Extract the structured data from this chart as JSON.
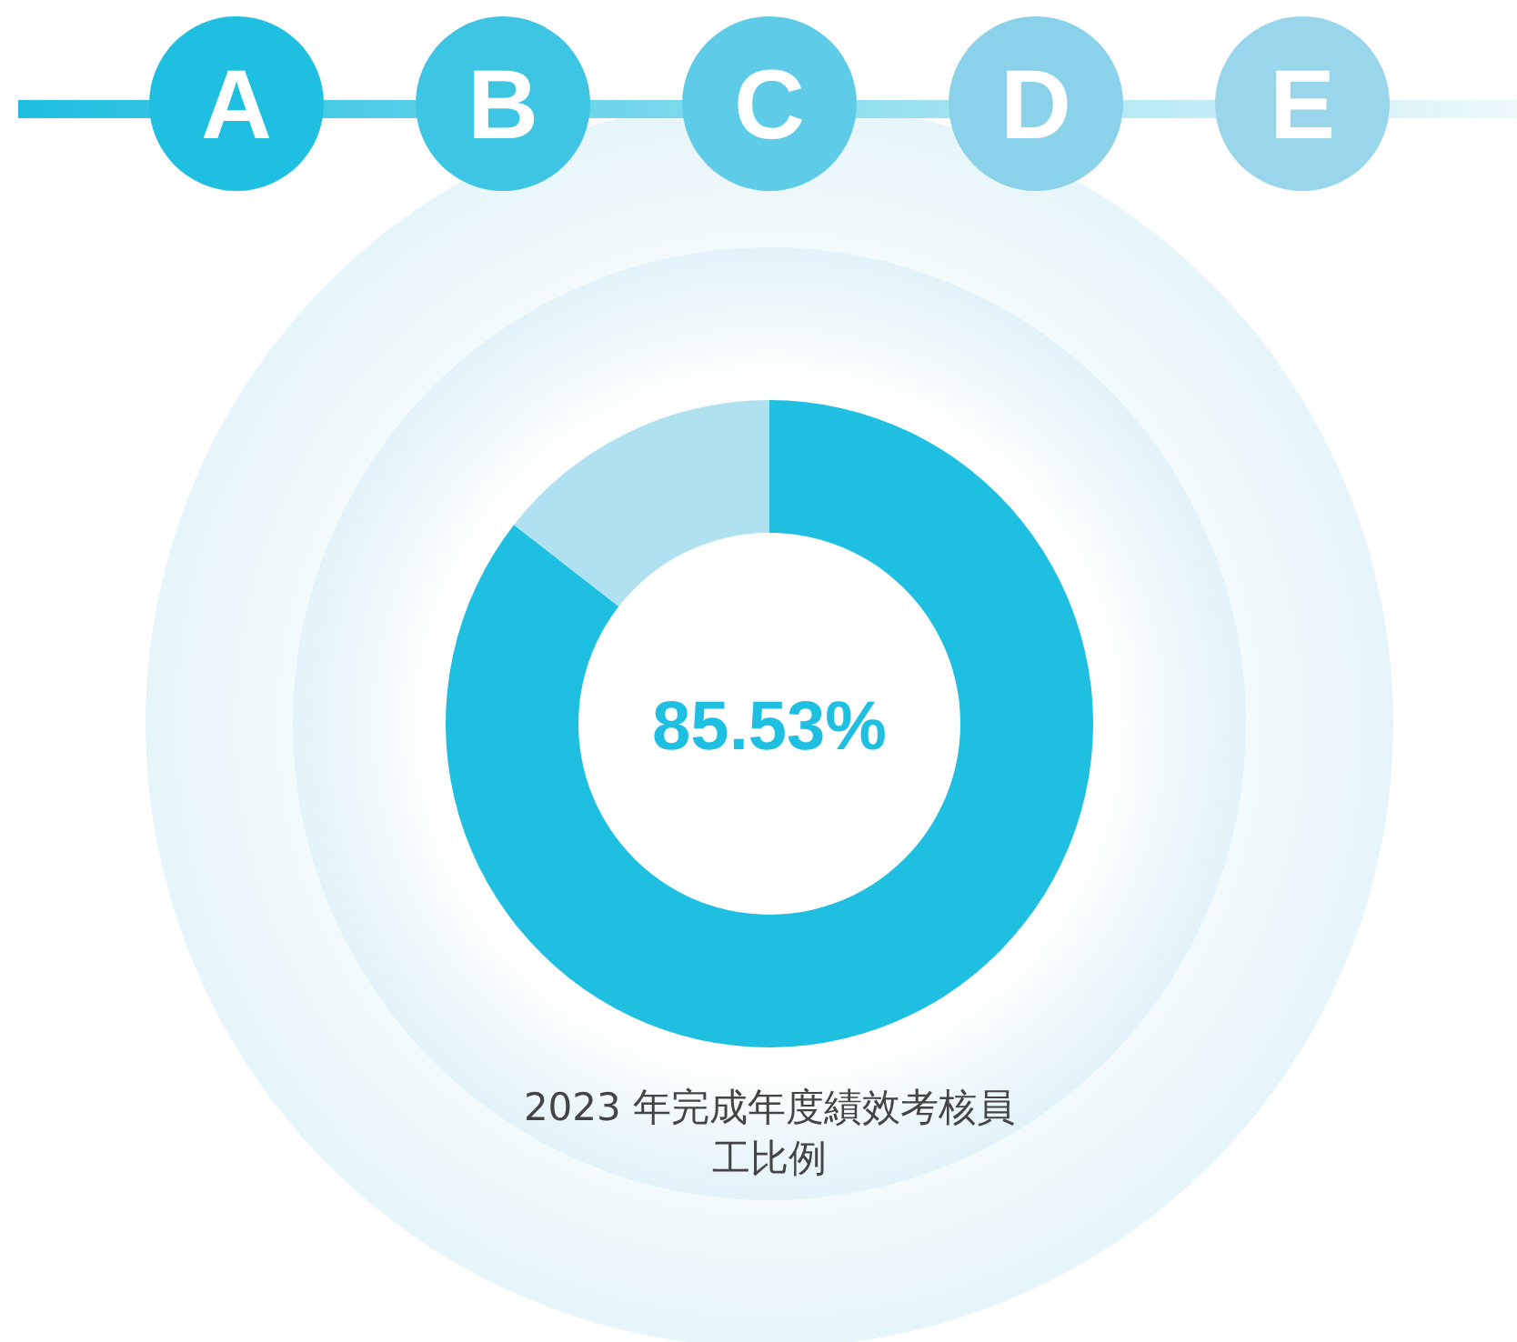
{
  "chart_data": {
    "type": "donut",
    "title": "2023 年完成年度績效考核員工比例",
    "categories": [
      null,
      null
    ],
    "values": [
      85.53,
      14.47
    ],
    "colors": [
      "#1ebfe0",
      "#b0e1f0"
    ],
    "value_labels": [
      "85.53%",
      null
    ],
    "annotations": [
      "A",
      "B",
      "C",
      "D",
      "E"
    ]
  }
}
